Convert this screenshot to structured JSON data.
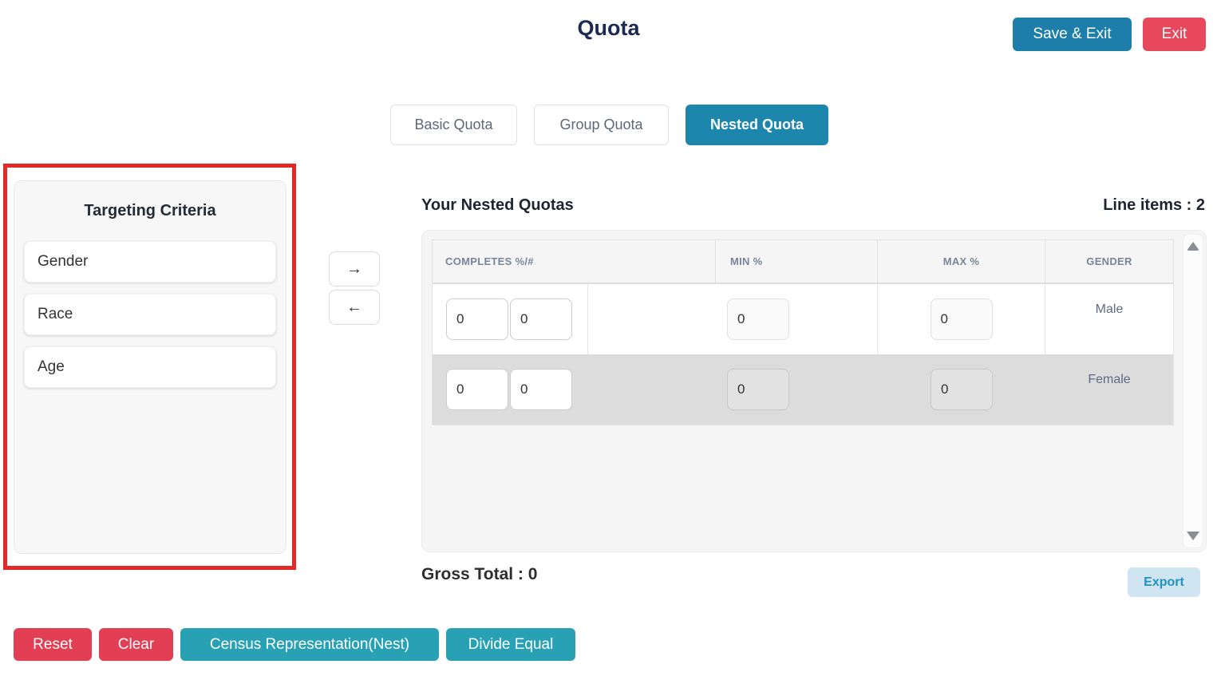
{
  "header": {
    "title": "Quota",
    "save_exit_label": "Save & Exit",
    "exit_label": "Exit"
  },
  "tabs": [
    {
      "label": "Basic Quota",
      "active": false
    },
    {
      "label": "Group Quota",
      "active": false
    },
    {
      "label": "Nested Quota",
      "active": true
    }
  ],
  "targeting": {
    "title": "Targeting Criteria",
    "items": [
      "Gender",
      "Race",
      "Age"
    ]
  },
  "transfer": {
    "move_right_label": "→",
    "move_left_label": "←"
  },
  "quotas": {
    "title": "Your Nested Quotas",
    "line_items_label": "Line items : 2",
    "columns": [
      "COMPLETES %/#",
      "MIN %",
      "MAX %",
      "GENDER"
    ],
    "rows": [
      {
        "completes_pct": "0",
        "completes_num": "0",
        "min": "0",
        "max": "0",
        "gender": "Male"
      },
      {
        "completes_pct": "0",
        "completes_num": "0",
        "min": "0",
        "max": "0",
        "gender": "Female"
      }
    ],
    "gross_total_label": "Gross Total : 0",
    "export_label": "Export"
  },
  "footer": {
    "reset_label": "Reset",
    "clear_label": "Clear",
    "census_label": "Census Representation(Nest)",
    "divide_label": "Divide Equal"
  },
  "colors": {
    "primary_blue": "#1d86ad",
    "action_teal": "#29a1b4",
    "danger_red": "#e8485c",
    "highlight_border_red": "#e32828",
    "heading_navy": "#1b2a52",
    "export_bg": "#cfe5f1",
    "export_text": "#2191c0",
    "row_alt_gray": "#dcdcdd"
  }
}
